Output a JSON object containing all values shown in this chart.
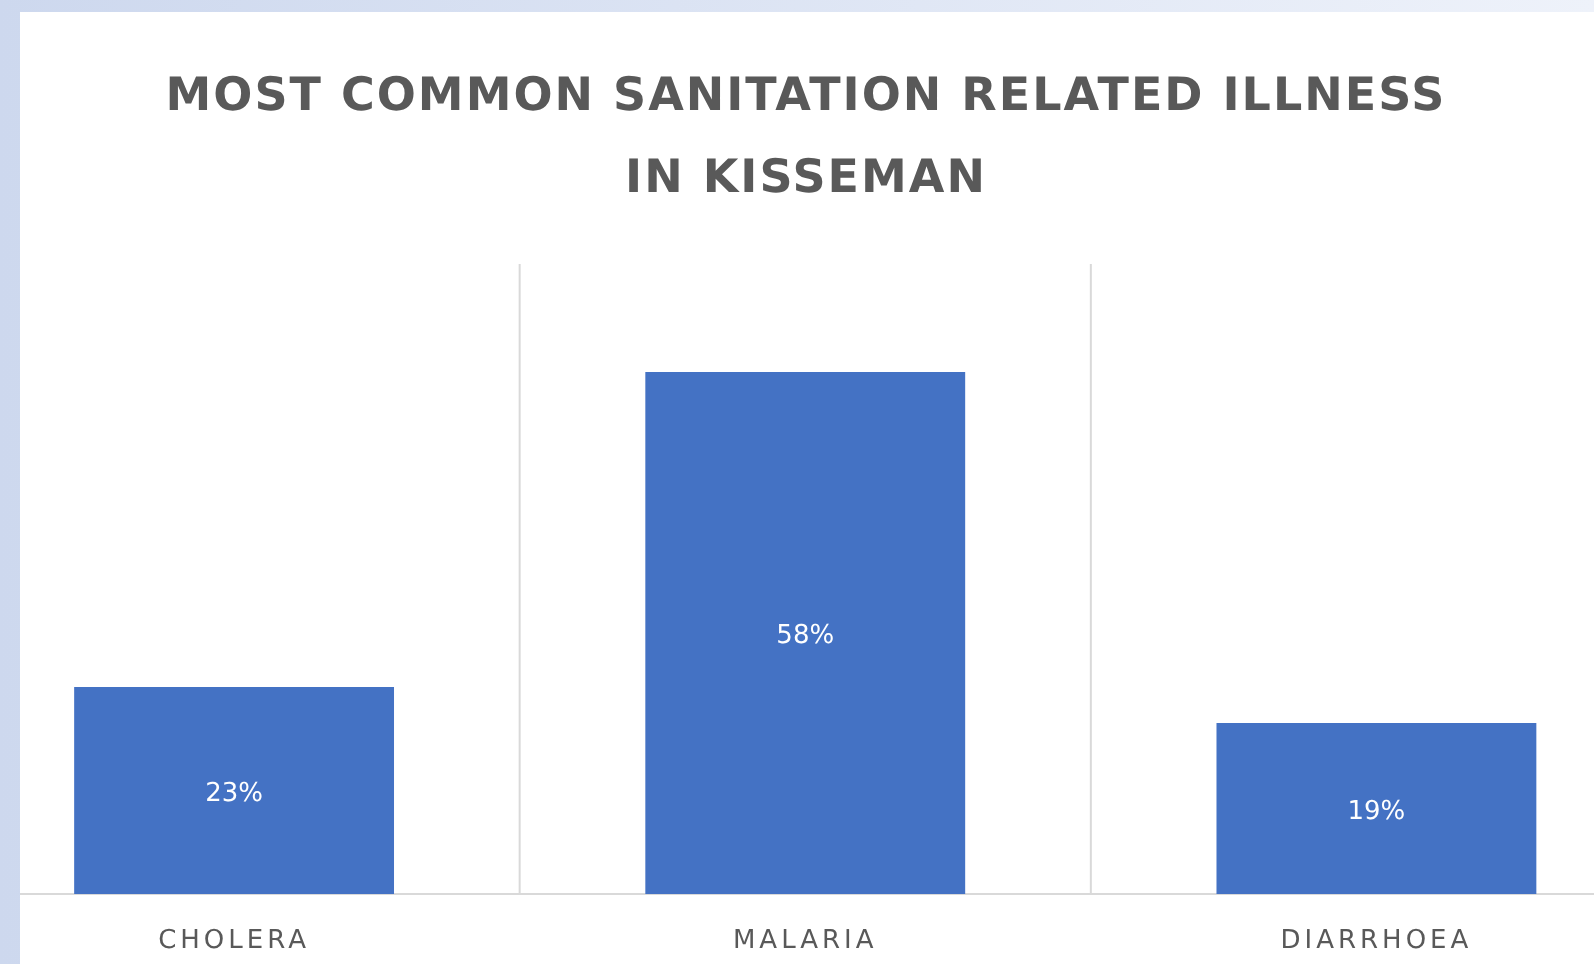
{
  "chart_data": {
    "type": "bar",
    "title": "MOST COMMON SANITATION RELATED ILLNESS IN KISSEMAN",
    "categories": [
      "CHOLERA",
      "MALARIA",
      "DIARRHOEA"
    ],
    "values": [
      23,
      58,
      19
    ],
    "value_labels": [
      "23%",
      "58%",
      "19%"
    ],
    "color": "#4472c4",
    "grid": "x"
  }
}
